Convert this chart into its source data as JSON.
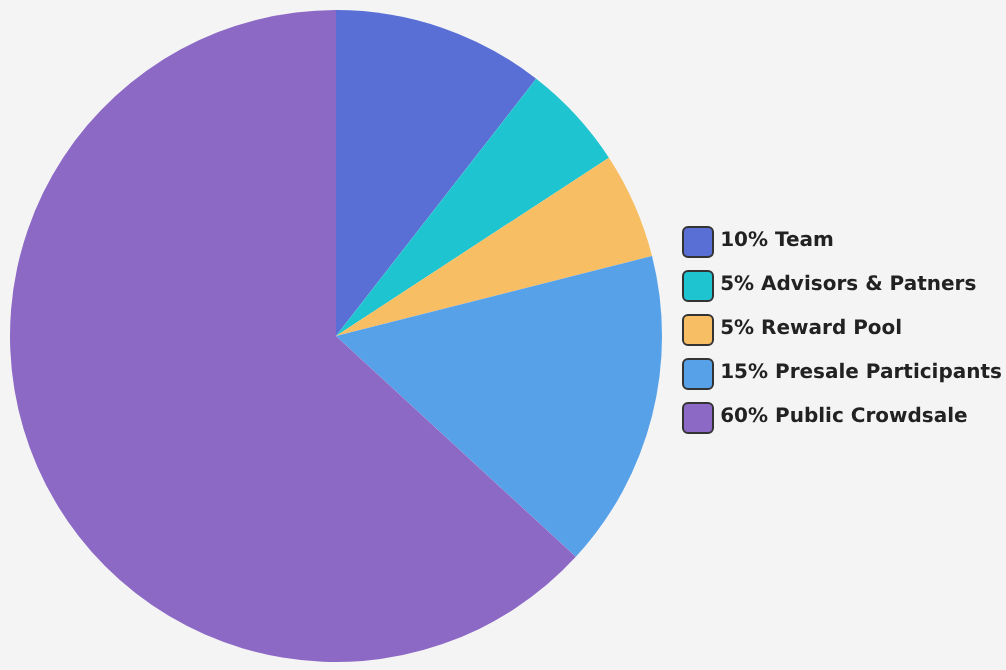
{
  "chart_data": {
    "type": "pie",
    "categories": [
      "10% Team",
      "5% Advisors & Patners",
      "5% Reward Pool",
      "15% Presale Participants",
      "60% Public Crowdsale"
    ],
    "values": [
      10,
      5,
      5,
      15,
      60
    ],
    "colors": [
      "#5a6fd5",
      "#1ec4cf",
      "#f7be64",
      "#56a1e8",
      "#8d69c6"
    ],
    "legend": "right"
  }
}
